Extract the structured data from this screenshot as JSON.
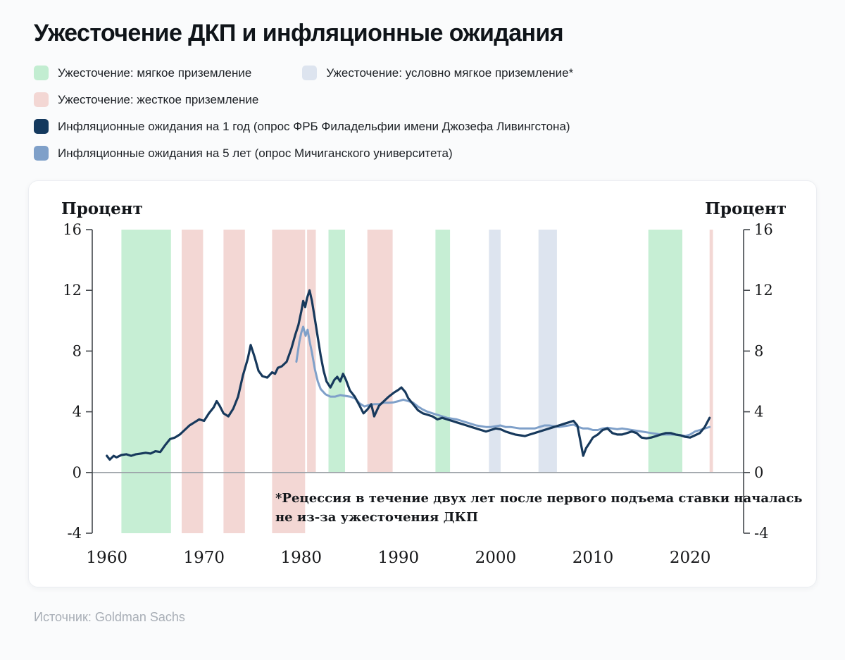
{
  "page": {
    "title": "Ужесточение ДКП и инфляционные ожидания",
    "source": "Источник: Goldman Sachs"
  },
  "legend": {
    "items": [
      {
        "label": "Ужесточение: мягкое приземление",
        "color": "#c2edd1"
      },
      {
        "label": "Ужесточение: условно мягкое приземление*",
        "color": "#dde4ef"
      },
      {
        "label": "Ужесточение: жесткое приземление",
        "color": "#f3d7d4"
      },
      {
        "label": "Инфляционные ожидания на 1 год (опрос ФРБ Филадельфии имени Джозефа Ливингстона)",
        "color": "#14395e"
      },
      {
        "label": "Инфляционные ожидания на 5 лет (опрос Мичиганского университета)",
        "color": "#7fa0c9"
      }
    ]
  },
  "chart": {
    "y_title_left": "Процент",
    "y_title_right": "Процент"
  },
  "chart_data": {
    "type": "line",
    "title": "Ужесточение ДКП и инфляционные ожидания",
    "y_axis": {
      "label": "Процент",
      "min": -4,
      "max": 16,
      "ticks": [
        16,
        12,
        8,
        4,
        0,
        -4
      ]
    },
    "x_axis": {
      "min": 1958.5,
      "max": 2025.5,
      "ticks": [
        1960,
        1970,
        1980,
        1990,
        2000,
        2010,
        2020
      ]
    },
    "band_colors": {
      "soft": "#c6eed4",
      "cond": "#dde4ef",
      "hard": "#f3d7d4"
    },
    "bands": [
      {
        "kind": "soft",
        "from": 1961.5,
        "to": 1966.6,
        "bottom": -4
      },
      {
        "kind": "hard",
        "from": 1967.7,
        "to": 1969.9,
        "bottom": -4
      },
      {
        "kind": "hard",
        "from": 1972.0,
        "to": 1974.2,
        "bottom": -4
      },
      {
        "kind": "hard",
        "from": 1977.0,
        "to": 1980.4,
        "bottom": -4
      },
      {
        "kind": "hard",
        "from": 1980.6,
        "to": 1981.5,
        "bottom": 0
      },
      {
        "kind": "soft",
        "from": 1982.8,
        "to": 1984.5,
        "bottom": 0
      },
      {
        "kind": "hard",
        "from": 1986.8,
        "to": 1989.4,
        "bottom": 0
      },
      {
        "kind": "soft",
        "from": 1993.8,
        "to": 1995.3,
        "bottom": 0
      },
      {
        "kind": "cond",
        "from": 1999.3,
        "to": 2000.5,
        "bottom": 0
      },
      {
        "kind": "cond",
        "from": 2004.4,
        "to": 2006.3,
        "bottom": 0
      },
      {
        "kind": "soft",
        "from": 2015.7,
        "to": 2019.2,
        "bottom": 0
      },
      {
        "kind": "hard",
        "from": 2022.0,
        "to": 2022.35,
        "bottom": 0
      }
    ],
    "series": [
      {
        "name": "Инфляционные ожидания на 5 лет (опрос Мичиганского университета)",
        "color": "#7fa0c9",
        "width": 3,
        "points": [
          [
            1979.5,
            7.3
          ],
          [
            1979.8,
            8.6
          ],
          [
            1980.0,
            9.2
          ],
          [
            1980.2,
            9.6
          ],
          [
            1980.45,
            9.0
          ],
          [
            1980.65,
            9.4
          ],
          [
            1980.9,
            8.5
          ],
          [
            1981.1,
            7.9
          ],
          [
            1981.4,
            6.8
          ],
          [
            1981.7,
            6.0
          ],
          [
            1982.0,
            5.5
          ],
          [
            1982.5,
            5.15
          ],
          [
            1983.0,
            5.0
          ],
          [
            1983.5,
            5.0
          ],
          [
            1984.0,
            5.1
          ],
          [
            1984.5,
            5.05
          ],
          [
            1985.0,
            5.0
          ],
          [
            1985.5,
            4.9
          ],
          [
            1986.0,
            4.55
          ],
          [
            1986.5,
            4.35
          ],
          [
            1987.0,
            4.45
          ],
          [
            1987.5,
            4.5
          ],
          [
            1988.0,
            4.5
          ],
          [
            1988.5,
            4.6
          ],
          [
            1989.0,
            4.6
          ],
          [
            1989.5,
            4.62
          ],
          [
            1990.0,
            4.7
          ],
          [
            1990.5,
            4.8
          ],
          [
            1991.0,
            4.7
          ],
          [
            1991.5,
            4.6
          ],
          [
            1992.0,
            4.35
          ],
          [
            1992.5,
            4.15
          ],
          [
            1993.0,
            4.0
          ],
          [
            1993.5,
            3.9
          ],
          [
            1994.0,
            3.8
          ],
          [
            1994.5,
            3.7
          ],
          [
            1995.0,
            3.6
          ],
          [
            1995.5,
            3.55
          ],
          [
            1996.0,
            3.5
          ],
          [
            1996.5,
            3.4
          ],
          [
            1997.0,
            3.3
          ],
          [
            1997.5,
            3.2
          ],
          [
            1998.0,
            3.1
          ],
          [
            1998.5,
            3.05
          ],
          [
            1999.0,
            3.0
          ],
          [
            1999.5,
            3.0
          ],
          [
            2000.0,
            3.05
          ],
          [
            2000.5,
            3.1
          ],
          [
            2001.0,
            3.0
          ],
          [
            2001.5,
            3.0
          ],
          [
            2002.0,
            2.95
          ],
          [
            2002.5,
            2.9
          ],
          [
            2003.0,
            2.9
          ],
          [
            2003.5,
            2.9
          ],
          [
            2004.0,
            2.9
          ],
          [
            2004.5,
            3.0
          ],
          [
            2005.0,
            3.1
          ],
          [
            2005.5,
            3.1
          ],
          [
            2006.0,
            3.05
          ],
          [
            2006.5,
            3.0
          ],
          [
            2007.0,
            3.05
          ],
          [
            2007.5,
            3.1
          ],
          [
            2008.0,
            3.15
          ],
          [
            2008.5,
            3.0
          ],
          [
            2009.0,
            2.9
          ],
          [
            2009.5,
            2.9
          ],
          [
            2010.0,
            2.8
          ],
          [
            2010.5,
            2.8
          ],
          [
            2011.0,
            2.9
          ],
          [
            2011.5,
            2.95
          ],
          [
            2012.0,
            2.9
          ],
          [
            2012.5,
            2.85
          ],
          [
            2013.0,
            2.9
          ],
          [
            2013.5,
            2.85
          ],
          [
            2014.0,
            2.8
          ],
          [
            2014.5,
            2.75
          ],
          [
            2015.0,
            2.7
          ],
          [
            2015.5,
            2.65
          ],
          [
            2016.0,
            2.6
          ],
          [
            2016.5,
            2.55
          ],
          [
            2017.0,
            2.5
          ],
          [
            2017.5,
            2.5
          ],
          [
            2018.0,
            2.5
          ],
          [
            2018.5,
            2.5
          ],
          [
            2019.0,
            2.45
          ],
          [
            2019.5,
            2.4
          ],
          [
            2020.0,
            2.5
          ],
          [
            2020.5,
            2.7
          ],
          [
            2021.0,
            2.8
          ],
          [
            2021.5,
            2.9
          ],
          [
            2022.0,
            3.0
          ]
        ]
      },
      {
        "name": "Инфляционные ожидания на 1 год (опрос ФРБ Филадельфии имени Джозефа Ливингстона)",
        "color": "#17395c",
        "width": 3.2,
        "points": [
          [
            1960.0,
            1.1
          ],
          [
            1960.3,
            0.85
          ],
          [
            1960.7,
            1.1
          ],
          [
            1961.0,
            1.0
          ],
          [
            1961.5,
            1.15
          ],
          [
            1962.0,
            1.2
          ],
          [
            1962.5,
            1.1
          ],
          [
            1963.0,
            1.2
          ],
          [
            1963.5,
            1.25
          ],
          [
            1964.0,
            1.3
          ],
          [
            1964.5,
            1.25
          ],
          [
            1965.0,
            1.4
          ],
          [
            1965.5,
            1.35
          ],
          [
            1966.0,
            1.8
          ],
          [
            1966.5,
            2.2
          ],
          [
            1967.0,
            2.3
          ],
          [
            1967.5,
            2.5
          ],
          [
            1968.0,
            2.8
          ],
          [
            1968.5,
            3.1
          ],
          [
            1969.0,
            3.3
          ],
          [
            1969.5,
            3.5
          ],
          [
            1970.0,
            3.4
          ],
          [
            1970.5,
            3.9
          ],
          [
            1971.0,
            4.3
          ],
          [
            1971.3,
            4.7
          ],
          [
            1971.6,
            4.4
          ],
          [
            1972.0,
            3.9
          ],
          [
            1972.5,
            3.7
          ],
          [
            1973.0,
            4.2
          ],
          [
            1973.5,
            5.0
          ],
          [
            1974.0,
            6.4
          ],
          [
            1974.5,
            7.5
          ],
          [
            1974.8,
            8.4
          ],
          [
            1975.2,
            7.6
          ],
          [
            1975.6,
            6.7
          ],
          [
            1976.0,
            6.35
          ],
          [
            1976.5,
            6.25
          ],
          [
            1977.0,
            6.6
          ],
          [
            1977.3,
            6.5
          ],
          [
            1977.6,
            6.9
          ],
          [
            1978.0,
            7.0
          ],
          [
            1978.5,
            7.3
          ],
          [
            1979.0,
            8.2
          ],
          [
            1979.4,
            9.1
          ],
          [
            1979.7,
            9.7
          ],
          [
            1980.0,
            10.6
          ],
          [
            1980.2,
            11.3
          ],
          [
            1980.4,
            10.9
          ],
          [
            1980.6,
            11.5
          ],
          [
            1980.85,
            12.0
          ],
          [
            1981.1,
            11.3
          ],
          [
            1981.4,
            10.1
          ],
          [
            1981.7,
            8.9
          ],
          [
            1982.0,
            7.7
          ],
          [
            1982.3,
            6.7
          ],
          [
            1982.6,
            6.0
          ],
          [
            1983.0,
            5.6
          ],
          [
            1983.4,
            6.1
          ],
          [
            1983.7,
            6.3
          ],
          [
            1984.0,
            6.0
          ],
          [
            1984.3,
            6.5
          ],
          [
            1984.6,
            6.1
          ],
          [
            1985.0,
            5.4
          ],
          [
            1985.5,
            5.0
          ],
          [
            1986.0,
            4.4
          ],
          [
            1986.4,
            3.9
          ],
          [
            1986.8,
            4.15
          ],
          [
            1987.2,
            4.5
          ],
          [
            1987.5,
            3.7
          ],
          [
            1988.0,
            4.4
          ],
          [
            1988.5,
            4.7
          ],
          [
            1989.0,
            5.0
          ],
          [
            1989.5,
            5.25
          ],
          [
            1990.0,
            5.45
          ],
          [
            1990.3,
            5.6
          ],
          [
            1990.7,
            5.3
          ],
          [
            1991.0,
            4.9
          ],
          [
            1991.5,
            4.5
          ],
          [
            1992.0,
            4.1
          ],
          [
            1992.5,
            3.9
          ],
          [
            1993.0,
            3.8
          ],
          [
            1993.5,
            3.7
          ],
          [
            1994.0,
            3.5
          ],
          [
            1994.5,
            3.6
          ],
          [
            1995.0,
            3.5
          ],
          [
            1995.5,
            3.4
          ],
          [
            1996.0,
            3.3
          ],
          [
            1996.5,
            3.2
          ],
          [
            1997.0,
            3.1
          ],
          [
            1997.5,
            3.0
          ],
          [
            1998.0,
            2.9
          ],
          [
            1998.5,
            2.8
          ],
          [
            1999.0,
            2.7
          ],
          [
            1999.5,
            2.8
          ],
          [
            2000.0,
            2.9
          ],
          [
            2000.5,
            2.85
          ],
          [
            2001.0,
            2.7
          ],
          [
            2001.5,
            2.6
          ],
          [
            2002.0,
            2.5
          ],
          [
            2002.5,
            2.45
          ],
          [
            2003.0,
            2.4
          ],
          [
            2003.5,
            2.5
          ],
          [
            2004.0,
            2.6
          ],
          [
            2004.5,
            2.7
          ],
          [
            2005.0,
            2.8
          ],
          [
            2005.5,
            2.9
          ],
          [
            2006.0,
            3.0
          ],
          [
            2006.5,
            3.1
          ],
          [
            2007.0,
            3.2
          ],
          [
            2007.5,
            3.3
          ],
          [
            2008.0,
            3.4
          ],
          [
            2008.4,
            3.1
          ],
          [
            2008.7,
            2.1
          ],
          [
            2009.0,
            1.1
          ],
          [
            2009.3,
            1.6
          ],
          [
            2009.7,
            2.0
          ],
          [
            2010.0,
            2.3
          ],
          [
            2010.5,
            2.5
          ],
          [
            2011.0,
            2.8
          ],
          [
            2011.5,
            2.9
          ],
          [
            2012.0,
            2.6
          ],
          [
            2012.5,
            2.5
          ],
          [
            2013.0,
            2.5
          ],
          [
            2013.5,
            2.6
          ],
          [
            2014.0,
            2.7
          ],
          [
            2014.5,
            2.6
          ],
          [
            2015.0,
            2.3
          ],
          [
            2015.5,
            2.25
          ],
          [
            2016.0,
            2.3
          ],
          [
            2016.5,
            2.4
          ],
          [
            2017.0,
            2.5
          ],
          [
            2017.5,
            2.6
          ],
          [
            2018.0,
            2.6
          ],
          [
            2018.5,
            2.5
          ],
          [
            2019.0,
            2.45
          ],
          [
            2019.5,
            2.35
          ],
          [
            2020.0,
            2.3
          ],
          [
            2020.5,
            2.45
          ],
          [
            2021.0,
            2.6
          ],
          [
            2021.5,
            3.0
          ],
          [
            2022.0,
            3.6
          ]
        ]
      }
    ],
    "annotation": {
      "lines": [
        "*Рецессия в течение двух лет после первого подъема ставки началась",
        "не из-за ужесточения ДКП"
      ]
    },
    "legend_position": "top-left",
    "grid": false
  }
}
